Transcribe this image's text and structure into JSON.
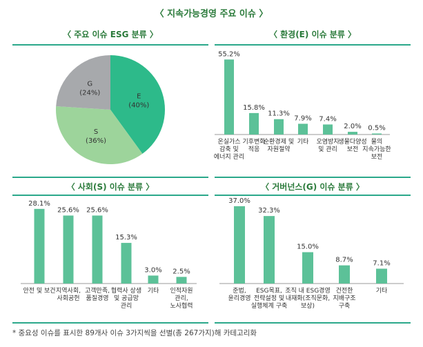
{
  "title": "〈 지속가능경영 주요 이슈 〉",
  "footnote": "* 중요성 이슈를 표시한 89개사 이슈 3가지씩을 선별(총 267가지)해 카테고리화",
  "colors": {
    "E": "#2dba8a",
    "S": "#9dd49b",
    "G": "#a7a9ac",
    "bar": "#5cc198",
    "accent": "#2a7a3a"
  },
  "chart_data": [
    {
      "type": "pie",
      "title": "〈 주요 이슈 ESG 분류 〉",
      "slices": [
        {
          "name": "E",
          "label": "(40%)",
          "value": 40
        },
        {
          "name": "S",
          "label": "(36%)",
          "value": 36
        },
        {
          "name": "G",
          "label": "(24%)",
          "value": 24
        }
      ]
    },
    {
      "type": "bar",
      "title": "〈 환경(E) 이슈 분류 〉",
      "categories": [
        "온실가스\n감축 및\n에너지 관리",
        "기후변화\n적응",
        "순환경제 및\n자원절약",
        "기타",
        "오염방지\n및 관리",
        "생물다양성\n보전",
        "물의\n지속가능한\n보전"
      ],
      "values": [
        55.2,
        15.8,
        11.3,
        7.9,
        7.4,
        2.0,
        0.5
      ],
      "value_labels": [
        "55.2%",
        "15.8%",
        "11.3%",
        "7.9%",
        "7.4%",
        "2.0%",
        "0.5%"
      ]
    },
    {
      "type": "bar",
      "title": "〈 사회(S) 이슈 분류 〉",
      "categories": [
        "안전 및 보건",
        "지역사회,\n사회공헌",
        "고객만족,\n품질경영",
        "협력사 상생\n및 공급망\n관리",
        "기타",
        "인적자원\n관리,\n노사협력"
      ],
      "values": [
        28.1,
        25.6,
        25.6,
        15.3,
        3.0,
        2.5
      ],
      "value_labels": [
        "28.1%",
        "25.6%",
        "25.6%",
        "15.3%",
        "3.0%",
        "2.5%"
      ]
    },
    {
      "type": "bar",
      "title": "〈 거버넌스(G) 이슈 분류 〉",
      "categories": [
        "준법,\n윤리경영",
        "ESG목표,\n전략설정 및\n실행체계 구축",
        "조직 내 ESG경영\n내재화(조직문화,\n보상)",
        "건전한\n지배구조\n구축",
        "기타"
      ],
      "values": [
        37.0,
        32.3,
        15.0,
        8.7,
        7.1
      ],
      "value_labels": [
        "37.0%",
        "32.3%",
        "15.0%",
        "8.7%",
        "7.1%"
      ]
    }
  ]
}
